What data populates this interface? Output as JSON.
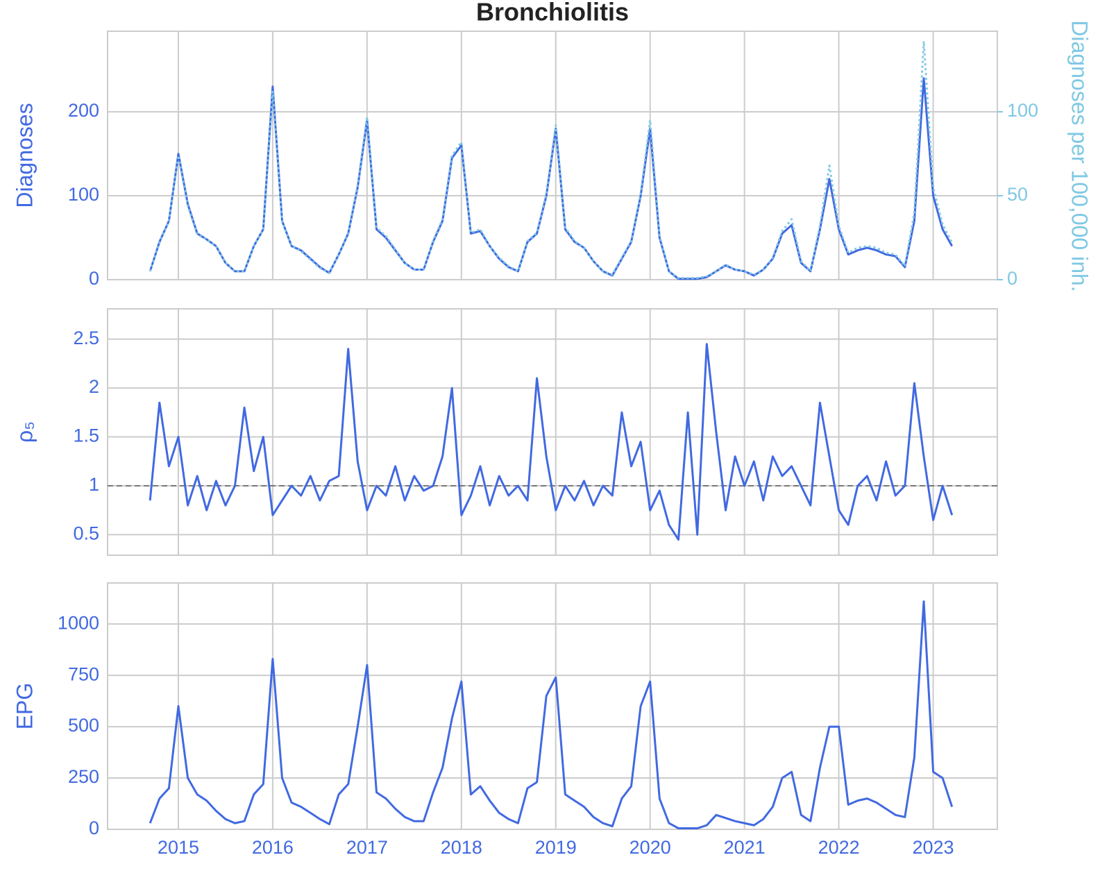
{
  "chart_data": [
    {
      "type": "line",
      "title": "Bronchiolitis",
      "ylabel": "Diagnoses",
      "y2label": "Diagnoses per 100,000 inh.",
      "x": [
        2014.7,
        2014.8,
        2014.9,
        2015.0,
        2015.1,
        2015.2,
        2015.3,
        2015.4,
        2015.5,
        2015.6,
        2015.7,
        2015.8,
        2015.9,
        2016.0,
        2016.1,
        2016.2,
        2016.3,
        2016.4,
        2016.5,
        2016.6,
        2016.7,
        2016.8,
        2016.9,
        2017.0,
        2017.1,
        2017.2,
        2017.3,
        2017.4,
        2017.5,
        2017.6,
        2017.7,
        2017.8,
        2017.9,
        2018.0,
        2018.1,
        2018.2,
        2018.3,
        2018.4,
        2018.5,
        2018.6,
        2018.7,
        2018.8,
        2018.9,
        2019.0,
        2019.1,
        2019.2,
        2019.3,
        2019.4,
        2019.5,
        2019.6,
        2019.7,
        2019.8,
        2019.9,
        2020.0,
        2020.1,
        2020.2,
        2020.3,
        2020.4,
        2020.5,
        2020.6,
        2020.7,
        2020.8,
        2020.9,
        2021.0,
        2021.1,
        2021.2,
        2021.3,
        2021.4,
        2021.5,
        2021.6,
        2021.7,
        2021.8,
        2021.9,
        2022.0,
        2022.1,
        2022.2,
        2022.3,
        2022.4,
        2022.5,
        2022.6,
        2022.7,
        2022.8,
        2022.9,
        2023.0,
        2023.1,
        2023.2
      ],
      "series": [
        {
          "color": "#4169e1",
          "linestyle": "solid",
          "values": [
            10,
            45,
            70,
            150,
            90,
            55,
            48,
            40,
            20,
            10,
            10,
            40,
            60,
            230,
            70,
            40,
            35,
            25,
            15,
            8,
            30,
            55,
            110,
            190,
            60,
            50,
            35,
            20,
            12,
            12,
            45,
            70,
            145,
            160,
            55,
            58,
            40,
            25,
            15,
            10,
            45,
            55,
            100,
            180,
            60,
            45,
            38,
            22,
            10,
            5,
            25,
            45,
            100,
            180,
            50,
            10,
            1,
            1,
            1,
            3,
            10,
            17,
            12,
            10,
            5,
            12,
            25,
            55,
            65,
            20,
            10,
            60,
            120,
            60,
            30,
            35,
            38,
            35,
            30,
            28,
            15,
            70,
            240,
            100,
            60,
            40
          ]
        },
        {
          "color": "#7ec8e3",
          "linestyle": "dotted",
          "axis": "y2",
          "values": [
            5,
            22,
            35,
            74,
            44,
            27,
            24,
            20,
            10,
            5,
            5,
            20,
            30,
            112,
            35,
            20,
            17,
            12,
            7,
            4,
            15,
            28,
            56,
            97,
            31,
            26,
            18,
            10,
            6,
            6,
            23,
            36,
            74,
            82,
            28,
            30,
            20,
            13,
            8,
            5,
            23,
            28,
            51,
            92,
            31,
            23,
            19,
            11,
            5,
            3,
            13,
            23,
            51,
            95,
            26,
            5,
            1,
            1,
            1,
            2,
            5,
            9,
            6,
            5,
            3,
            6,
            13,
            29,
            36,
            11,
            5,
            32,
            68,
            32,
            16,
            19,
            20,
            19,
            16,
            15,
            8,
            40,
            142,
            55,
            33,
            22
          ]
        }
      ],
      "xlim": [
        2014.25,
        2023.68
      ],
      "xticks": [
        2015,
        2016,
        2017,
        2018,
        2019,
        2020,
        2021,
        2022,
        2023
      ],
      "ylim": [
        0,
        296
      ],
      "yticks": [
        0,
        100,
        200
      ],
      "y2lim": [
        0,
        148
      ],
      "y2ticks": [
        0,
        50,
        100
      ],
      "grid": true
    },
    {
      "type": "line",
      "ylabel": "ρ₅",
      "x": [
        2014.7,
        2014.8,
        2014.9,
        2015.0,
        2015.1,
        2015.2,
        2015.3,
        2015.4,
        2015.5,
        2015.6,
        2015.7,
        2015.8,
        2015.9,
        2016.0,
        2016.1,
        2016.2,
        2016.3,
        2016.4,
        2016.5,
        2016.6,
        2016.7,
        2016.8,
        2016.9,
        2017.0,
        2017.1,
        2017.2,
        2017.3,
        2017.4,
        2017.5,
        2017.6,
        2017.7,
        2017.8,
        2017.9,
        2018.0,
        2018.1,
        2018.2,
        2018.3,
        2018.4,
        2018.5,
        2018.6,
        2018.7,
        2018.8,
        2018.9,
        2019.0,
        2019.1,
        2019.2,
        2019.3,
        2019.4,
        2019.5,
        2019.6,
        2019.7,
        2019.8,
        2019.9,
        2020.0,
        2020.1,
        2020.2,
        2020.3,
        2020.4,
        2020.5,
        2020.6,
        2020.7,
        2020.8,
        2020.9,
        2021.0,
        2021.1,
        2021.2,
        2021.3,
        2021.4,
        2021.5,
        2021.6,
        2021.7,
        2021.8,
        2021.9,
        2022.0,
        2022.1,
        2022.2,
        2022.3,
        2022.4,
        2022.5,
        2022.6,
        2022.7,
        2022.8,
        2022.9,
        2023.0,
        2023.1,
        2023.2
      ],
      "series": [
        {
          "color": "#4169e1",
          "linestyle": "solid",
          "values": [
            0.85,
            1.85,
            1.2,
            1.5,
            0.8,
            1.1,
            0.75,
            1.05,
            0.8,
            1.0,
            1.8,
            1.15,
            1.5,
            0.7,
            0.85,
            1.0,
            0.9,
            1.1,
            0.85,
            1.05,
            1.1,
            2.4,
            1.25,
            0.75,
            1.0,
            0.9,
            1.2,
            0.85,
            1.1,
            0.95,
            1.0,
            1.3,
            2.0,
            0.7,
            0.9,
            1.2,
            0.8,
            1.1,
            0.9,
            1.0,
            0.85,
            2.1,
            1.3,
            0.75,
            1.0,
            0.85,
            1.05,
            0.8,
            1.0,
            0.9,
            1.75,
            1.2,
            1.45,
            0.75,
            0.95,
            0.6,
            0.45,
            1.75,
            0.5,
            2.45,
            1.55,
            0.75,
            1.3,
            1.0,
            1.25,
            0.85,
            1.3,
            1.1,
            1.2,
            1.0,
            0.8,
            1.85,
            1.3,
            0.75,
            0.6,
            1.0,
            1.1,
            0.85,
            1.25,
            0.9,
            1.0,
            2.05,
            1.3,
            0.65,
            1.0,
            0.7
          ]
        }
      ],
      "xlim": [
        2014.25,
        2023.68
      ],
      "xticks": [
        2015,
        2016,
        2017,
        2018,
        2019,
        2020,
        2021,
        2022,
        2023
      ],
      "ylim": [
        0.29,
        2.81
      ],
      "yticks": [
        0.5,
        1.0,
        1.5,
        2.0,
        2.5
      ],
      "hline": 1.0,
      "grid": true
    },
    {
      "type": "line",
      "ylabel": "EPG",
      "x": [
        2014.7,
        2014.8,
        2014.9,
        2015.0,
        2015.1,
        2015.2,
        2015.3,
        2015.4,
        2015.5,
        2015.6,
        2015.7,
        2015.8,
        2015.9,
        2016.0,
        2016.1,
        2016.2,
        2016.3,
        2016.4,
        2016.5,
        2016.6,
        2016.7,
        2016.8,
        2016.9,
        2017.0,
        2017.1,
        2017.2,
        2017.3,
        2017.4,
        2017.5,
        2017.6,
        2017.7,
        2017.8,
        2017.9,
        2018.0,
        2018.1,
        2018.2,
        2018.3,
        2018.4,
        2018.5,
        2018.6,
        2018.7,
        2018.8,
        2018.9,
        2019.0,
        2019.1,
        2019.2,
        2019.3,
        2019.4,
        2019.5,
        2019.6,
        2019.7,
        2019.8,
        2019.9,
        2020.0,
        2020.1,
        2020.2,
        2020.3,
        2020.4,
        2020.5,
        2020.6,
        2020.7,
        2020.8,
        2020.9,
        2021.0,
        2021.1,
        2021.2,
        2021.3,
        2021.4,
        2021.5,
        2021.6,
        2021.7,
        2021.8,
        2021.9,
        2022.0,
        2022.1,
        2022.2,
        2022.3,
        2022.4,
        2022.5,
        2022.6,
        2022.7,
        2022.8,
        2022.9,
        2023.0,
        2023.1,
        2023.2
      ],
      "series": [
        {
          "color": "#4169e1",
          "linestyle": "solid",
          "values": [
            30,
            150,
            200,
            600,
            250,
            170,
            140,
            90,
            50,
            30,
            40,
            170,
            220,
            830,
            250,
            130,
            110,
            80,
            50,
            25,
            170,
            220,
            500,
            800,
            180,
            150,
            100,
            60,
            40,
            40,
            180,
            300,
            540,
            720,
            170,
            210,
            140,
            80,
            50,
            30,
            200,
            230,
            650,
            740,
            170,
            140,
            110,
            60,
            30,
            15,
            150,
            210,
            600,
            720,
            150,
            30,
            5,
            5,
            5,
            20,
            70,
            55,
            40,
            30,
            20,
            50,
            110,
            250,
            280,
            70,
            40,
            300,
            500,
            500,
            120,
            140,
            150,
            130,
            100,
            70,
            60,
            350,
            1110,
            280,
            250,
            110
          ]
        }
      ],
      "xlim": [
        2014.25,
        2023.68
      ],
      "xticks": [
        2015,
        2016,
        2017,
        2018,
        2019,
        2020,
        2021,
        2022,
        2023
      ],
      "ylim": [
        0,
        1200
      ],
      "yticks": [
        0,
        250,
        500,
        750,
        1000
      ],
      "grid": true
    }
  ]
}
